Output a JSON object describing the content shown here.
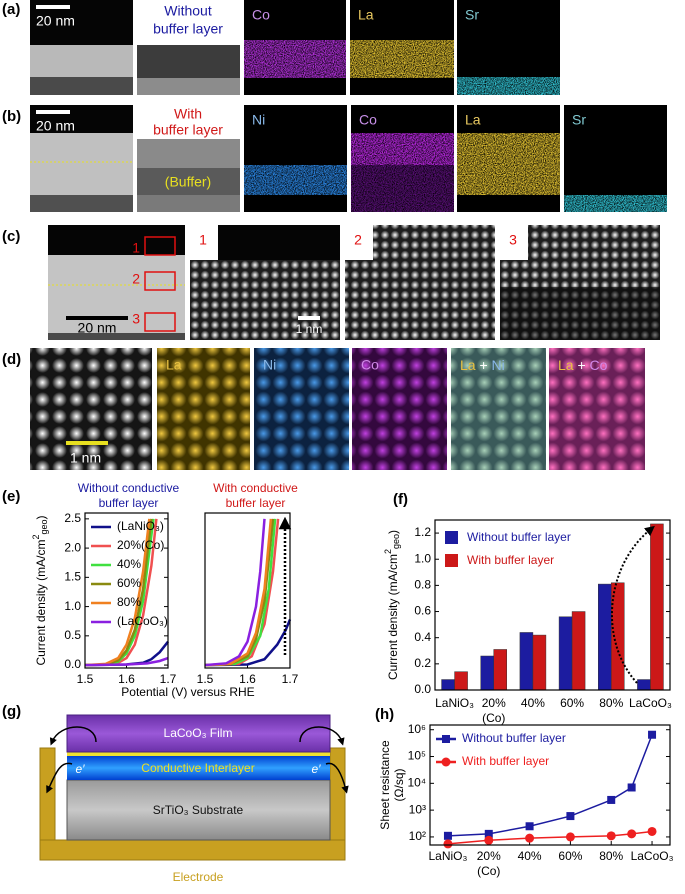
{
  "panel_a": {
    "label": "(a)",
    "scale_bar": "20 nm",
    "title": [
      "Without",
      "buffer layer"
    ],
    "maps": [
      "Co",
      "La",
      "Sr"
    ]
  },
  "panel_b": {
    "label": "(b)",
    "scale_bar": "20 nm",
    "title": [
      "With",
      "buffer layer"
    ],
    "buffer": "(Buffer)",
    "maps": [
      "Ni",
      "Co",
      "La",
      "Sr"
    ]
  },
  "panel_c": {
    "label": "(c)",
    "scale_bar": "20 nm",
    "regions": [
      "1",
      "2",
      "3"
    ],
    "inset_scale_bar": "1 nm"
  },
  "panel_d": {
    "label": "(d)",
    "scale_bar": "1 nm",
    "maps": [
      "La",
      "Ni",
      "Co"
    ],
    "overlays": [
      [
        "La",
        "+",
        "Ni"
      ],
      [
        "La",
        "+",
        "Co"
      ]
    ]
  },
  "panel_g": {
    "label": "(g)",
    "film": "LaCoO₃ Film",
    "interlayer": "Conductive Interlayer",
    "substrate": "SrTiO₃ Substrate",
    "electrode": "Electrode",
    "carrier": "e′"
  },
  "chart_data": [
    {
      "type": "line",
      "label": "(e)",
      "title": [
        "Without conductive",
        "buffer layer"
      ],
      "title_color": "#1a1aa0",
      "xlabel": "Potential (V) versus RHE",
      "ylabel": [
        "Current density (mA/cm",
        "2",
        "geo",
        ")"
      ],
      "xlim": [
        1.5,
        1.7
      ],
      "ylim": [
        -0.05,
        2.6
      ],
      "xticks": [
        1.5,
        1.6,
        1.7
      ],
      "yticks": [
        {
          "value": 0,
          "label": "0.0"
        },
        0.5,
        {
          "value": 1,
          "label": "1.0"
        },
        1.5,
        {
          "value": 2,
          "label": "2.0"
        },
        2.5
      ],
      "legend": "upper left",
      "series": [
        {
          "name": "(LaNiO₃)",
          "color": "#10108a",
          "x": [
            1.5,
            1.6,
            1.64,
            1.66,
            1.68,
            1.7
          ],
          "values": [
            0,
            0.01,
            0.04,
            0.1,
            0.22,
            0.4
          ]
        },
        {
          "name": "20%(Co)",
          "color": "#f05050",
          "x": [
            1.5,
            1.55,
            1.58,
            1.6,
            1.62,
            1.64,
            1.66,
            1.672
          ],
          "values": [
            0,
            0.01,
            0.04,
            0.12,
            0.35,
            0.85,
            1.7,
            2.5
          ]
        },
        {
          "name": "40%",
          "color": "#40e040",
          "x": [
            1.5,
            1.55,
            1.58,
            1.6,
            1.62,
            1.64,
            1.665
          ],
          "values": [
            0,
            0.01,
            0.06,
            0.2,
            0.5,
            1.1,
            2.5
          ]
        },
        {
          "name": "60%",
          "color": "#8a8a10",
          "x": [
            1.5,
            1.55,
            1.58,
            1.6,
            1.62,
            1.64,
            1.66
          ],
          "values": [
            0,
            0.01,
            0.08,
            0.25,
            0.6,
            1.3,
            2.5
          ]
        },
        {
          "name": "80%",
          "color": "#f08020",
          "x": [
            1.5,
            1.55,
            1.58,
            1.6,
            1.62,
            1.64,
            1.655
          ],
          "values": [
            0,
            0.02,
            0.12,
            0.35,
            0.8,
            1.6,
            2.5
          ]
        },
        {
          "name": "(LaCoO₃)",
          "color": "#8a20e0",
          "x": [
            1.5,
            1.6,
            1.65,
            1.68,
            1.7
          ],
          "values": [
            0,
            0.01,
            0.03,
            0.07,
            0.12
          ]
        }
      ]
    },
    {
      "type": "line",
      "title": [
        "With conductive",
        "buffer layer"
      ],
      "title_color": "#d01818",
      "xlim": [
        1.5,
        1.7
      ],
      "ylim": [
        -0.05,
        2.6
      ],
      "xticks": [
        1.5,
        1.6,
        1.7
      ],
      "series": [
        {
          "color": "#10108a",
          "x": [
            1.5,
            1.6,
            1.64,
            1.67,
            1.69,
            1.7
          ],
          "values": [
            0,
            0.01,
            0.1,
            0.35,
            0.6,
            0.78
          ]
        },
        {
          "color": "#f05050",
          "x": [
            1.5,
            1.58,
            1.61,
            1.64,
            1.66,
            1.672
          ],
          "values": [
            0,
            0.02,
            0.15,
            0.7,
            1.6,
            2.5
          ]
        },
        {
          "color": "#40e040",
          "x": [
            1.5,
            1.57,
            1.6,
            1.63,
            1.65,
            1.665
          ],
          "values": [
            0,
            0.02,
            0.12,
            0.5,
            1.3,
            2.5
          ]
        },
        {
          "color": "#8a8a10",
          "x": [
            1.5,
            1.56,
            1.6,
            1.62,
            1.64,
            1.66
          ],
          "values": [
            0,
            0.02,
            0.15,
            0.45,
            1.1,
            2.5
          ]
        },
        {
          "color": "#f08020",
          "x": [
            1.5,
            1.56,
            1.6,
            1.62,
            1.64,
            1.655
          ],
          "values": [
            0,
            0.02,
            0.2,
            0.55,
            1.3,
            2.5
          ]
        },
        {
          "color": "#8a20e0",
          "x": [
            1.5,
            1.55,
            1.58,
            1.6,
            1.62,
            1.63,
            1.64
          ],
          "values": [
            0,
            0.03,
            0.15,
            0.4,
            1.0,
            1.6,
            2.5
          ]
        }
      ]
    },
    {
      "type": "bar",
      "label": "(f)",
      "ylabel": [
        "Current density (mA/cm",
        "2",
        "geo",
        ")"
      ],
      "categories": [
        "LaNiO₃",
        "20%\n(Co)",
        "40%",
        "60%",
        "80%",
        "LaCoO₃"
      ],
      "ylim": [
        0,
        1.3
      ],
      "yticks": [
        {
          "value": 0,
          "label": "0.0"
        },
        0.2,
        0.4,
        0.6,
        0.8,
        {
          "value": 1,
          "label": "1.0"
        },
        1.2
      ],
      "legend": "upper left",
      "series": [
        {
          "name": "Without buffer layer",
          "color": "#1c1ca0",
          "values": [
            0.08,
            0.26,
            0.44,
            0.56,
            0.81,
            0.08
          ]
        },
        {
          "name": "With buffer layer",
          "color": "#cc1818",
          "values": [
            0.14,
            0.31,
            0.42,
            0.6,
            0.82,
            1.27
          ]
        }
      ]
    },
    {
      "type": "line",
      "label": "(h)",
      "ylabel": [
        "Sheet resistance",
        "(Ω/sq)"
      ],
      "log_y": true,
      "x": [
        0,
        1,
        2,
        3,
        4,
        4.5,
        5
      ],
      "xlim": [
        -0.44,
        5.44
      ],
      "ylim": [
        50,
        1500000
      ],
      "xticks": [
        {
          "value": 0,
          "label": "LaNiO₃"
        },
        {
          "value": 1,
          "label": "20%\n(Co)"
        },
        {
          "value": 2,
          "label": "40%"
        },
        {
          "value": 3,
          "label": "60%"
        },
        {
          "value": 4,
          "label": "80%"
        },
        {
          "value": 5,
          "label": "LaCoO₃"
        }
      ],
      "yticks": [
        {
          "value": 100,
          "label": "10²"
        },
        {
          "value": 1000,
          "label": "10³"
        },
        {
          "value": 10000,
          "label": "10⁴"
        },
        {
          "value": 100000,
          "label": "10⁵"
        },
        {
          "value": 1000000,
          "label": "10⁶"
        }
      ],
      "legend": "upper left",
      "series": [
        {
          "name": "Without buffer layer",
          "color": "#1c1ca0",
          "marker": "square",
          "values": [
            110,
            130,
            250,
            600,
            2400,
            7000,
            650000
          ]
        },
        {
          "name": "With buffer layer",
          "color": "#ee2020",
          "marker": "circle",
          "values": [
            55,
            75,
            90,
            100,
            110,
            130,
            160
          ]
        }
      ]
    }
  ]
}
